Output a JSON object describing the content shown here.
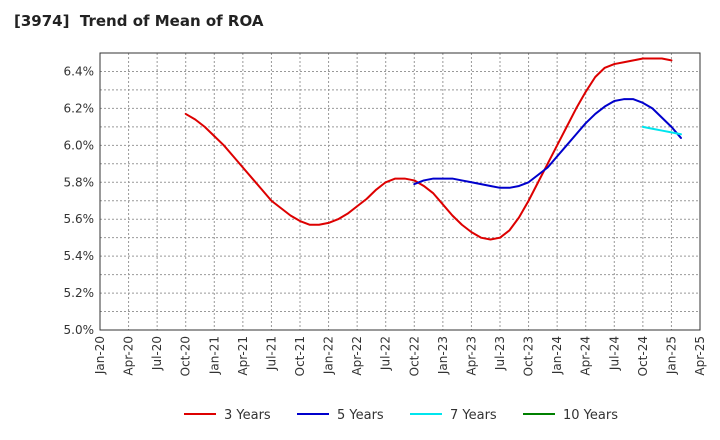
{
  "chart_data": {
    "type": "line",
    "title": "[3974]  Trend of Mean of ROA",
    "xlabel": "",
    "ylabel": "",
    "x_ticks": [
      "Jan-20",
      "Apr-20",
      "Jul-20",
      "Oct-20",
      "Jan-21",
      "Apr-21",
      "Jul-21",
      "Oct-21",
      "Jan-22",
      "Apr-22",
      "Jul-22",
      "Oct-22",
      "Jan-23",
      "Apr-23",
      "Jul-23",
      "Oct-23",
      "Jan-24",
      "Apr-24",
      "Jul-24",
      "Oct-24",
      "Jan-25",
      "Apr-25"
    ],
    "y_ticks": [
      "5.0%",
      "5.2%",
      "5.4%",
      "5.6%",
      "5.8%",
      "6.0%",
      "6.2%",
      "6.4%"
    ],
    "ylim": [
      5.0,
      6.5
    ],
    "grid": true,
    "legend_position": "bottom",
    "series": [
      {
        "name": "3 Years",
        "color": "#dd0000",
        "points": [
          [
            "Oct-20",
            6.17
          ],
          [
            "Nov-20",
            6.14
          ],
          [
            "Dec-20",
            6.1
          ],
          [
            "Jan-21",
            6.05
          ],
          [
            "Feb-21",
            6.0
          ],
          [
            "Mar-21",
            5.94
          ],
          [
            "Apr-21",
            5.88
          ],
          [
            "May-21",
            5.82
          ],
          [
            "Jun-21",
            5.76
          ],
          [
            "Jul-21",
            5.7
          ],
          [
            "Aug-21",
            5.66
          ],
          [
            "Sep-21",
            5.62
          ],
          [
            "Oct-21",
            5.59
          ],
          [
            "Nov-21",
            5.57
          ],
          [
            "Dec-21",
            5.57
          ],
          [
            "Jan-22",
            5.58
          ],
          [
            "Feb-22",
            5.6
          ],
          [
            "Mar-22",
            5.63
          ],
          [
            "Apr-22",
            5.67
          ],
          [
            "May-22",
            5.71
          ],
          [
            "Jun-22",
            5.76
          ],
          [
            "Jul-22",
            5.8
          ],
          [
            "Aug-22",
            5.82
          ],
          [
            "Sep-22",
            5.82
          ],
          [
            "Oct-22",
            5.81
          ],
          [
            "Nov-22",
            5.78
          ],
          [
            "Dec-22",
            5.74
          ],
          [
            "Jan-23",
            5.68
          ],
          [
            "Feb-23",
            5.62
          ],
          [
            "Mar-23",
            5.57
          ],
          [
            "Apr-23",
            5.53
          ],
          [
            "May-23",
            5.5
          ],
          [
            "Jun-23",
            5.49
          ],
          [
            "Jul-23",
            5.5
          ],
          [
            "Aug-23",
            5.54
          ],
          [
            "Sep-23",
            5.61
          ],
          [
            "Oct-23",
            5.7
          ],
          [
            "Nov-23",
            5.8
          ],
          [
            "Dec-23",
            5.9
          ],
          [
            "Jan-24",
            6.0
          ],
          [
            "Feb-24",
            6.1
          ],
          [
            "Mar-24",
            6.2
          ],
          [
            "Apr-24",
            6.29
          ],
          [
            "May-24",
            6.37
          ],
          [
            "Jun-24",
            6.42
          ],
          [
            "Jul-24",
            6.44
          ],
          [
            "Aug-24",
            6.45
          ],
          [
            "Sep-24",
            6.46
          ],
          [
            "Oct-24",
            6.47
          ],
          [
            "Nov-24",
            6.47
          ],
          [
            "Dec-24",
            6.47
          ],
          [
            "Jan-25",
            6.46
          ]
        ]
      },
      {
        "name": "5 Years",
        "color": "#0000cc",
        "points": [
          [
            "Oct-22",
            5.79
          ],
          [
            "Nov-22",
            5.81
          ],
          [
            "Dec-22",
            5.82
          ],
          [
            "Jan-23",
            5.82
          ],
          [
            "Feb-23",
            5.82
          ],
          [
            "Mar-23",
            5.81
          ],
          [
            "Apr-23",
            5.8
          ],
          [
            "May-23",
            5.79
          ],
          [
            "Jun-23",
            5.78
          ],
          [
            "Jul-23",
            5.77
          ],
          [
            "Aug-23",
            5.77
          ],
          [
            "Sep-23",
            5.78
          ],
          [
            "Oct-23",
            5.8
          ],
          [
            "Nov-23",
            5.84
          ],
          [
            "Dec-23",
            5.88
          ],
          [
            "Jan-24",
            5.94
          ],
          [
            "Feb-24",
            6.0
          ],
          [
            "Mar-24",
            6.06
          ],
          [
            "Apr-24",
            6.12
          ],
          [
            "May-24",
            6.17
          ],
          [
            "Jun-24",
            6.21
          ],
          [
            "Jul-24",
            6.24
          ],
          [
            "Aug-24",
            6.25
          ],
          [
            "Sep-24",
            6.25
          ],
          [
            "Oct-24",
            6.23
          ],
          [
            "Nov-24",
            6.2
          ],
          [
            "Dec-24",
            6.15
          ],
          [
            "Jan-25",
            6.1
          ],
          [
            "Feb-25",
            6.04
          ]
        ]
      },
      {
        "name": "7 Years",
        "color": "#00e5ee",
        "points": [
          [
            "Oct-24",
            6.1
          ],
          [
            "Nov-24",
            6.09
          ],
          [
            "Dec-24",
            6.08
          ],
          [
            "Jan-25",
            6.07
          ],
          [
            "Feb-25",
            6.06
          ]
        ]
      },
      {
        "name": "10 Years",
        "color": "#008000",
        "points": []
      }
    ]
  }
}
